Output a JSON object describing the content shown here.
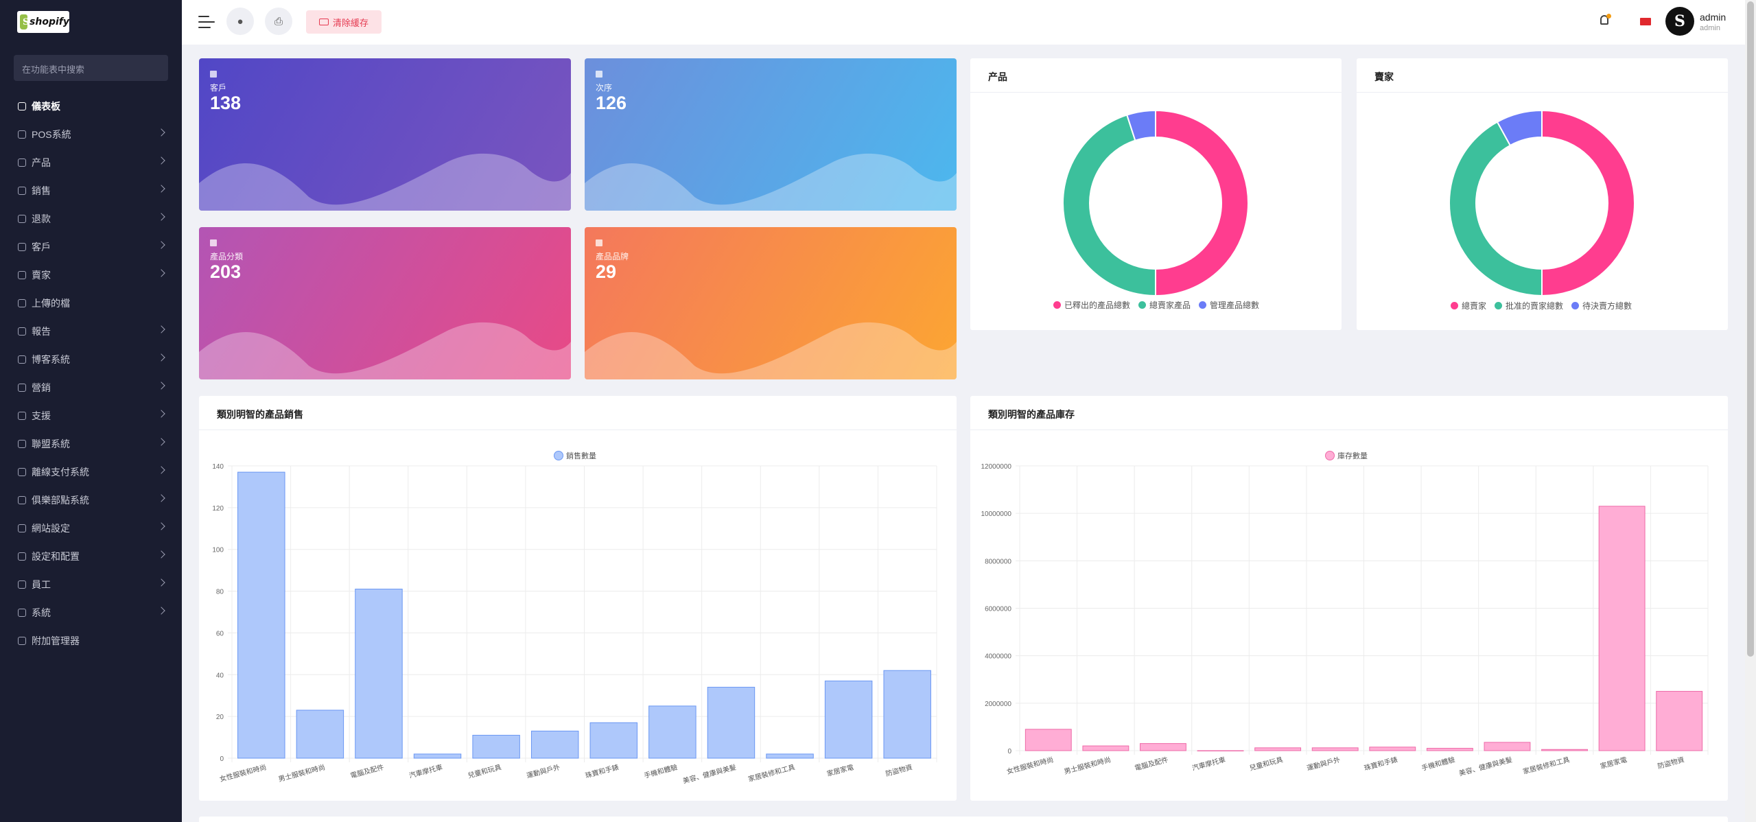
{
  "brand": {
    "name": "shopify"
  },
  "sidebar": {
    "search_placeholder": "在功能表中搜索",
    "items": [
      {
        "label": "儀表板",
        "active": true,
        "chevron": false
      },
      {
        "label": "POS系統",
        "chevron": true
      },
      {
        "label": "产品",
        "chevron": true
      },
      {
        "label": "銷售",
        "chevron": true
      },
      {
        "label": "退款",
        "chevron": true
      },
      {
        "label": "客戶",
        "chevron": true
      },
      {
        "label": "賣家",
        "chevron": true
      },
      {
        "label": "上傳的檔",
        "chevron": false
      },
      {
        "label": "報告",
        "chevron": true
      },
      {
        "label": "博客系統",
        "chevron": true
      },
      {
        "label": "營銷",
        "chevron": true
      },
      {
        "label": "支援",
        "chevron": true
      },
      {
        "label": "聯盟系統",
        "chevron": true
      },
      {
        "label": "離線支付系統",
        "chevron": true
      },
      {
        "label": "俱樂部點系統",
        "chevron": true
      },
      {
        "label": "網站設定",
        "chevron": true
      },
      {
        "label": "設定和配置",
        "chevron": true
      },
      {
        "label": "員工",
        "chevron": true
      },
      {
        "label": "系統",
        "chevron": true
      },
      {
        "label": "附加管理器",
        "chevron": false
      }
    ]
  },
  "topbar": {
    "clear_cache_label": "清除緩存",
    "user_name": "admin",
    "user_role": "admin"
  },
  "stats": [
    {
      "label": "客戶",
      "value": "138"
    },
    {
      "label": "次序",
      "value": "126"
    },
    {
      "label": "產品分類",
      "value": "203"
    },
    {
      "label": "產品品牌",
      "value": "29"
    }
  ],
  "colors": {
    "pink": "#ff3d8f",
    "teal": "#3cc09c",
    "blue": "#6b7cf7",
    "bar_blue": "#aec8fb",
    "bar_pink": "#ffadd5"
  },
  "products_panel": {
    "title": "产品"
  },
  "sellers_panel": {
    "title": "賣家"
  },
  "sales_panel": {
    "title": "類別明智的產品銷售"
  },
  "stock_panel": {
    "title": "類別明智的產品庫存"
  },
  "chart_data": [
    {
      "type": "pie",
      "labels": [
        "已釋出的產品總數",
        "總賣家產品",
        "管理產品總數"
      ],
      "values": [
        50,
        45,
        5
      ]
    },
    {
      "type": "pie",
      "labels": [
        "總賣家",
        "批准的賣家總數",
        "待決賣方總數"
      ],
      "values": [
        50,
        42,
        8
      ]
    },
    {
      "type": "bar",
      "series": [
        {
          "name": "銷售數量",
          "values": [
            137,
            23,
            81,
            2,
            11,
            13,
            17,
            25,
            34,
            2,
            37,
            42
          ]
        }
      ],
      "categories": [
        "女性服裝和時尚",
        "男士服裝和時尚",
        "電腦及配件",
        "汽車摩托車",
        "兒童和玩具",
        "運動與戶外",
        "珠寶和手錶",
        "手機和體驗",
        "美容、健康與美髮",
        "家居裝修和工具",
        "家居家電",
        "防盜物資"
      ],
      "yticks": [
        "0",
        "20",
        "40",
        "60",
        "80",
        "100",
        "120",
        "140"
      ],
      "ylim": [
        0,
        140
      ]
    },
    {
      "type": "bar",
      "series": [
        {
          "name": "庫存數量",
          "values": [
            900000,
            200000,
            300000,
            0,
            120000,
            120000,
            150000,
            100000,
            350000,
            50000,
            10300000,
            2500000
          ]
        }
      ],
      "categories": [
        "女性服裝和時尚",
        "男士服裝和時尚",
        "電腦及配件",
        "汽車摩托車",
        "兒童和玩具",
        "運動與戶外",
        "珠寶和手錶",
        "手機和體驗",
        "美容、健康與美髮",
        "家居裝修和工具",
        "家居家電",
        "防盜物資"
      ],
      "yticks": [
        "0",
        "2000000",
        "4000000",
        "6000000",
        "8000000",
        "10000000",
        "12000000"
      ],
      "ylim": [
        0,
        12000000
      ]
    }
  ]
}
